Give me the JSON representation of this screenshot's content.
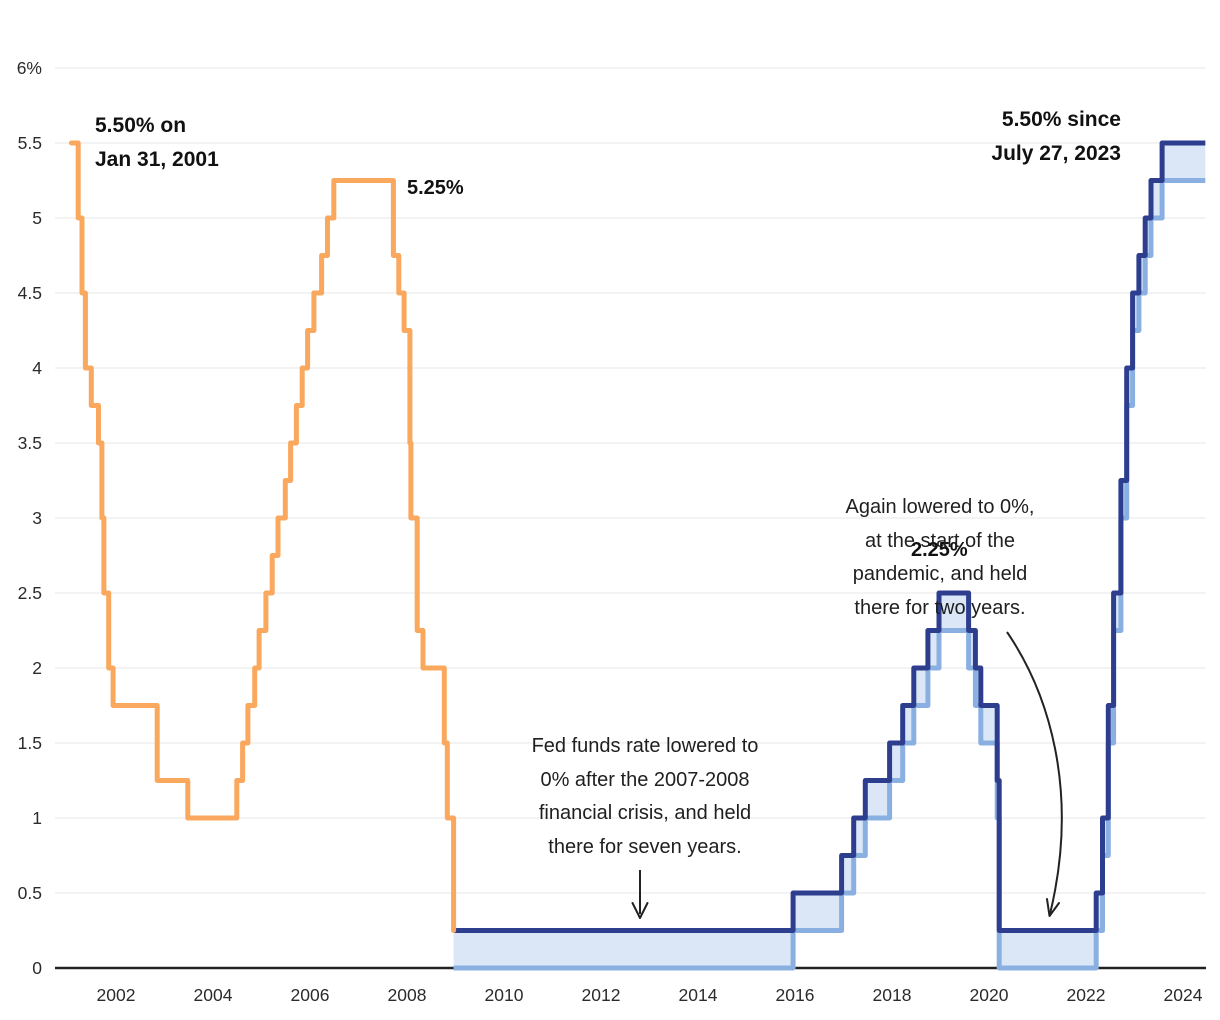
{
  "chart_data": {
    "type": "line",
    "subtype": "step",
    "title": "",
    "xlabel": "",
    "ylabel": "",
    "xlim": [
      2000.75,
      2024.46
    ],
    "ylim": [
      0,
      6
    ],
    "grid": "horizontal",
    "legend": "none",
    "x_ticks": [
      2002,
      2004,
      2006,
      2008,
      2010,
      2012,
      2014,
      2016,
      2018,
      2020,
      2022,
      2024
    ],
    "y_ticks": [
      {
        "v": 0,
        "label": "0"
      },
      {
        "v": 0.5,
        "label": "0.5"
      },
      {
        "v": 1,
        "label": "1"
      },
      {
        "v": 1.5,
        "label": "1.5"
      },
      {
        "v": 2,
        "label": "2"
      },
      {
        "v": 2.5,
        "label": "2.5"
      },
      {
        "v": 3,
        "label": "3"
      },
      {
        "v": 3.5,
        "label": "3.5"
      },
      {
        "v": 4,
        "label": "4"
      },
      {
        "v": 4.5,
        "label": "4.5"
      },
      {
        "v": 5,
        "label": "5"
      },
      {
        "v": 5.5,
        "label": "5.5"
      },
      {
        "v": 6,
        "label": "6%"
      }
    ],
    "series": [
      {
        "name": "fed-funds-target-2001-2008",
        "color": "#F9A85D",
        "points": [
          [
            2001.08,
            5.5
          ],
          [
            2001.22,
            5.0
          ],
          [
            2001.3,
            4.5
          ],
          [
            2001.37,
            4.0
          ],
          [
            2001.49,
            3.75
          ],
          [
            2001.64,
            3.5
          ],
          [
            2001.71,
            3.0
          ],
          [
            2001.75,
            2.5
          ],
          [
            2001.85,
            2.0
          ],
          [
            2001.94,
            1.75
          ],
          [
            2002.85,
            1.25
          ],
          [
            2003.48,
            1.0
          ],
          [
            2004.49,
            1.25
          ],
          [
            2004.61,
            1.5
          ],
          [
            2004.72,
            1.75
          ],
          [
            2004.86,
            2.0
          ],
          [
            2004.95,
            2.25
          ],
          [
            2005.09,
            2.5
          ],
          [
            2005.22,
            2.75
          ],
          [
            2005.34,
            3.0
          ],
          [
            2005.49,
            3.25
          ],
          [
            2005.6,
            3.5
          ],
          [
            2005.72,
            3.75
          ],
          [
            2005.84,
            4.0
          ],
          [
            2005.95,
            4.25
          ],
          [
            2006.08,
            4.5
          ],
          [
            2006.24,
            4.75
          ],
          [
            2006.36,
            5.0
          ],
          [
            2006.49,
            5.25
          ],
          [
            2007.72,
            4.75
          ],
          [
            2007.83,
            4.5
          ],
          [
            2007.94,
            4.25
          ],
          [
            2008.06,
            3.5
          ],
          [
            2008.08,
            3.0
          ],
          [
            2008.21,
            2.25
          ],
          [
            2008.33,
            2.0
          ],
          [
            2008.77,
            1.5
          ],
          [
            2008.83,
            1.0
          ],
          [
            2008.96,
            0.25
          ]
        ],
        "x_end": 2008.96
      },
      {
        "name": "fed-funds-target-range-upper-2008-2024",
        "color": "#2D3E8F",
        "points": [
          [
            2008.96,
            0.25
          ],
          [
            2015.96,
            0.5
          ],
          [
            2016.96,
            0.75
          ],
          [
            2017.21,
            1.0
          ],
          [
            2017.45,
            1.25
          ],
          [
            2017.95,
            1.5
          ],
          [
            2018.22,
            1.75
          ],
          [
            2018.45,
            2.0
          ],
          [
            2018.74,
            2.25
          ],
          [
            2018.97,
            2.5
          ],
          [
            2019.58,
            2.25
          ],
          [
            2019.72,
            2.0
          ],
          [
            2019.83,
            1.75
          ],
          [
            2020.17,
            1.25
          ],
          [
            2020.21,
            0.25
          ],
          [
            2022.21,
            0.5
          ],
          [
            2022.34,
            1.0
          ],
          [
            2022.46,
            1.75
          ],
          [
            2022.57,
            2.5
          ],
          [
            2022.72,
            3.25
          ],
          [
            2022.84,
            4.0
          ],
          [
            2022.96,
            4.5
          ],
          [
            2023.09,
            4.75
          ],
          [
            2023.22,
            5.0
          ],
          [
            2023.34,
            5.25
          ],
          [
            2023.57,
            5.5
          ]
        ],
        "x_end": 2024.46
      },
      {
        "name": "fed-funds-target-range-lower-2008-2024",
        "color": "#8AB0E2",
        "band_fill": "#DBE7F7",
        "points": [
          [
            2008.96,
            0
          ],
          [
            2015.96,
            0.25
          ],
          [
            2016.96,
            0.5
          ],
          [
            2017.21,
            0.75
          ],
          [
            2017.45,
            1.0
          ],
          [
            2017.95,
            1.25
          ],
          [
            2018.22,
            1.5
          ],
          [
            2018.45,
            1.75
          ],
          [
            2018.74,
            2.0
          ],
          [
            2018.97,
            2.25
          ],
          [
            2019.58,
            2.0
          ],
          [
            2019.72,
            1.75
          ],
          [
            2019.83,
            1.5
          ],
          [
            2020.17,
            1.0
          ],
          [
            2020.21,
            0
          ],
          [
            2022.21,
            0.25
          ],
          [
            2022.34,
            0.75
          ],
          [
            2022.46,
            1.5
          ],
          [
            2022.57,
            2.25
          ],
          [
            2022.72,
            3.0
          ],
          [
            2022.84,
            3.75
          ],
          [
            2022.96,
            4.25
          ],
          [
            2023.09,
            4.5
          ],
          [
            2023.22,
            4.75
          ],
          [
            2023.34,
            5.0
          ],
          [
            2023.57,
            5.25
          ]
        ],
        "x_end": 2024.46
      }
    ],
    "annotations": {
      "start_label": "5.50% on\nJan 31, 2001",
      "peak_2006_label": "5.25%",
      "current_label": "5.50% since\nJuly 27, 2023",
      "peak_2019_label": "2.25%",
      "gfc_note": "Fed funds rate lowered to\n0% after the 2007-2008\nfinancial crisis, and held\nthere for seven years.",
      "pandemic_note": "Again lowered to 0%,\nat the start of the\npandemic, and held\nthere for two years."
    },
    "colors": {
      "orange_line": "#F9A85D",
      "dark_blue_line": "#2D3E8F",
      "light_blue_line": "#8AB0E2",
      "band_fill": "#DBE7F7",
      "gridline": "#E7E7E7",
      "axis": "#222222",
      "annotation_text": "#1f1f1f",
      "arrow": "#222222"
    }
  }
}
